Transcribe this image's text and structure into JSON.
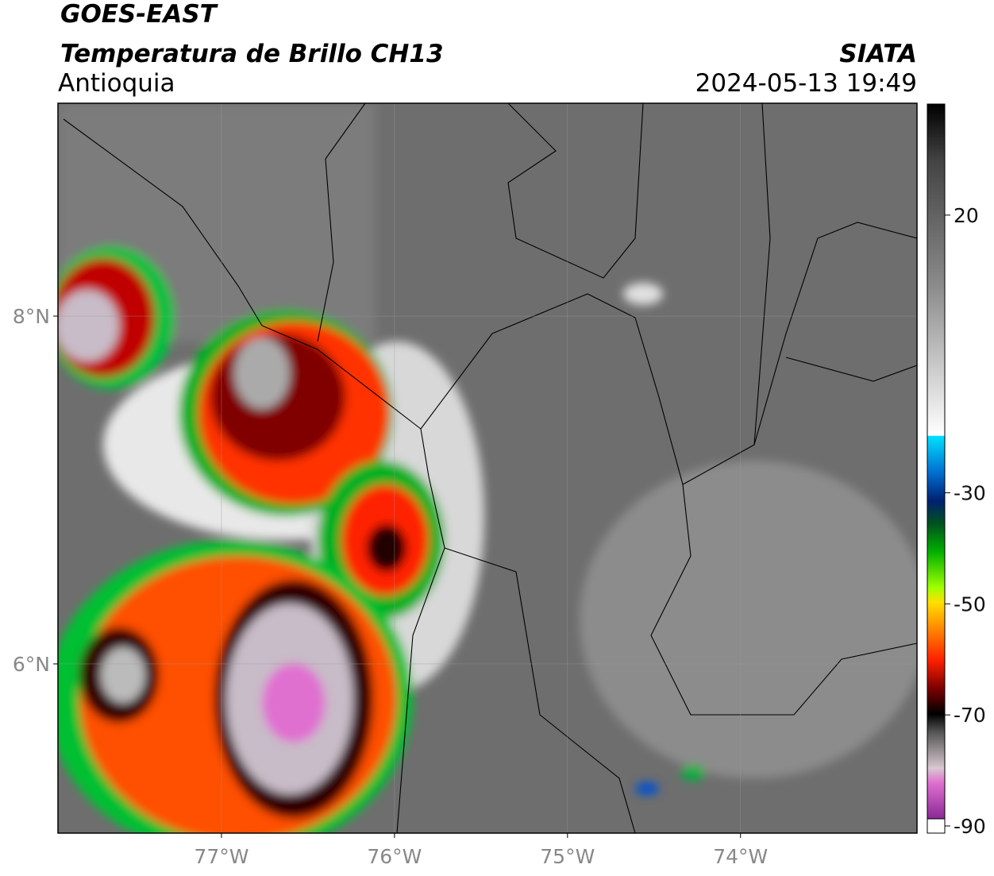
{
  "header": {
    "title": "GOES-EAST",
    "subtitle": "Temperatura de Brillo CH13",
    "region": "Antioquia",
    "source": "SIATA",
    "datetime": "2024-05-13 19:49"
  },
  "map": {
    "xlim": [
      -77.945,
      -72.98
    ],
    "ylim": [
      5.027,
      9.224
    ],
    "xticks": [
      {
        "value": -77,
        "label": "77°W"
      },
      {
        "value": -76,
        "label": "76°W"
      },
      {
        "value": -75,
        "label": "75°W"
      },
      {
        "value": -74,
        "label": "74°W"
      }
    ],
    "yticks": [
      {
        "value": 6,
        "label": "6°N"
      },
      {
        "value": 8,
        "label": "8°N"
      }
    ]
  },
  "colorbar": {
    "lim": [
      -90,
      40
    ],
    "ticks": [
      20,
      -30,
      -50,
      -70,
      -90
    ]
  }
}
